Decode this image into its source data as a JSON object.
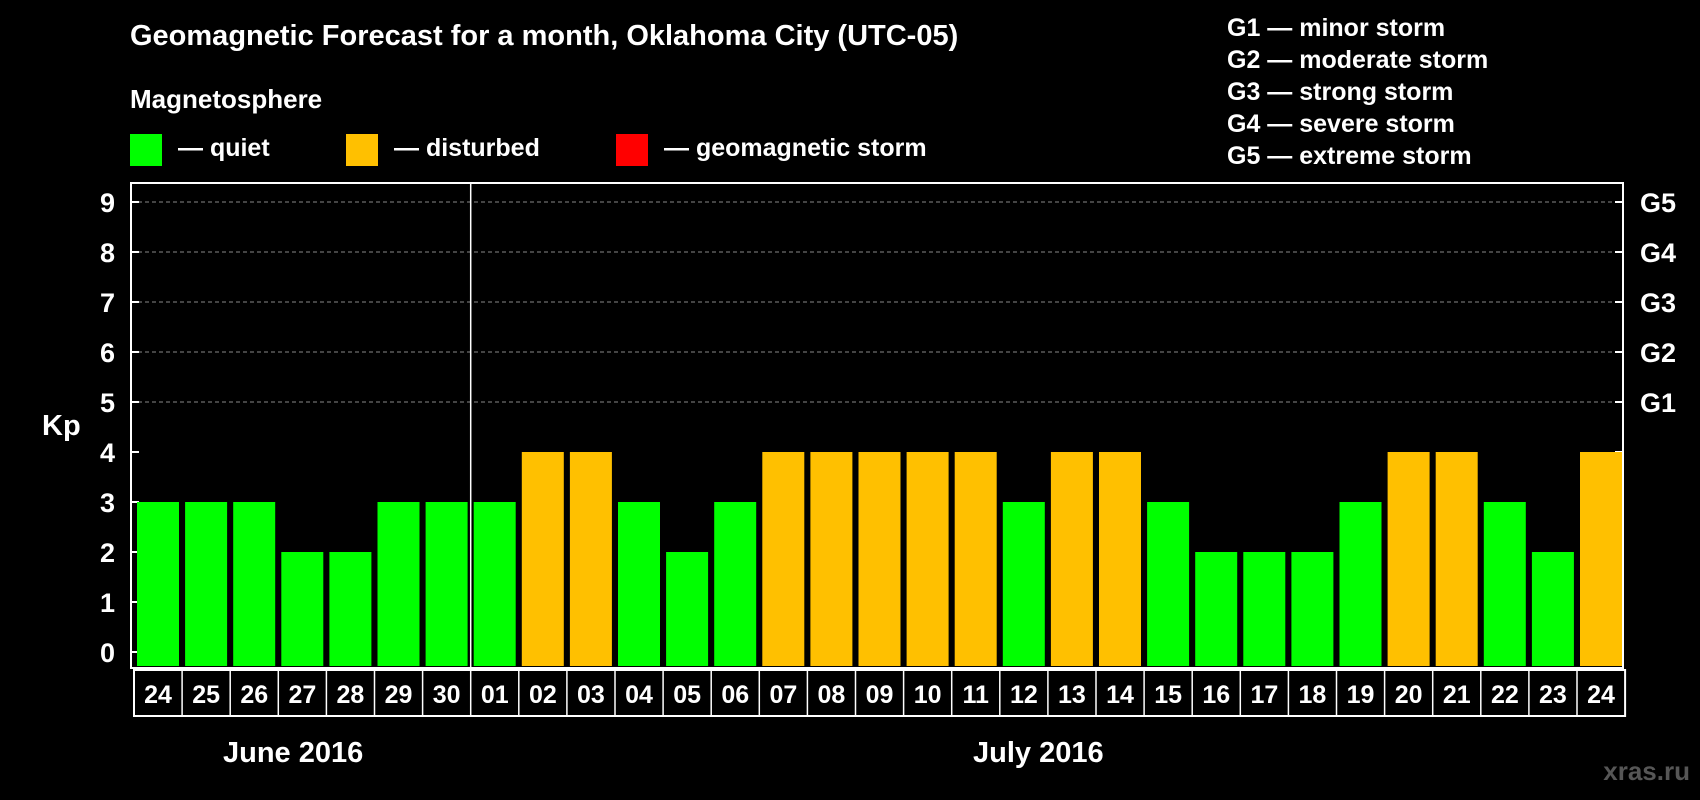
{
  "title": "Geomagnetic Forecast for a month, Oklahoma City (UTC-05)",
  "legend": {
    "heading": "Magnetosphere",
    "items": [
      {
        "label": "— quiet",
        "color": "#00ff00"
      },
      {
        "label": "— disturbed",
        "color": "#ffc000"
      },
      {
        "label": "— geomagnetic storm",
        "color": "#ff0000"
      }
    ]
  },
  "g_scale": [
    "G1 — minor storm",
    "G2 — moderate storm",
    "G3 — strong storm",
    "G4 — severe storm",
    "G5 — extreme storm"
  ],
  "y_axis_label": "Kp",
  "months": [
    "June 2016",
    "July 2016"
  ],
  "watermark": "xras.ru",
  "chart_data": {
    "type": "bar",
    "title": "Geomagnetic Forecast for a month, Oklahoma City (UTC-05)",
    "ylabel": "Kp",
    "ylim": [
      0,
      9
    ],
    "yticks": [
      "0",
      "1",
      "2",
      "3",
      "4",
      "5",
      "6",
      "7",
      "8",
      "9"
    ],
    "right_ticks": [
      {
        "kp": 5,
        "label": "G1"
      },
      {
        "kp": 6,
        "label": "G2"
      },
      {
        "kp": 7,
        "label": "G3"
      },
      {
        "kp": 8,
        "label": "G4"
      },
      {
        "kp": 9,
        "label": "G5"
      }
    ],
    "grid": "dashed horizontal at Kp 5-9",
    "categories": [
      "24",
      "25",
      "26",
      "27",
      "28",
      "29",
      "30",
      "01",
      "02",
      "03",
      "04",
      "05",
      "06",
      "07",
      "08",
      "09",
      "10",
      "11",
      "12",
      "13",
      "14",
      "15",
      "16",
      "17",
      "18",
      "19",
      "20",
      "21",
      "22",
      "23",
      "24"
    ],
    "values": [
      3,
      3,
      3,
      2,
      2,
      3,
      3,
      3,
      4,
      4,
      3,
      2,
      3,
      4,
      4,
      4,
      4,
      4,
      3,
      4,
      4,
      3,
      2,
      2,
      2,
      3,
      4,
      4,
      3,
      2,
      4
    ],
    "colors": {
      "quiet": "#00ff00",
      "disturbed": "#ffc000",
      "storm": "#ff0000"
    },
    "month_split_after_index": 6
  }
}
